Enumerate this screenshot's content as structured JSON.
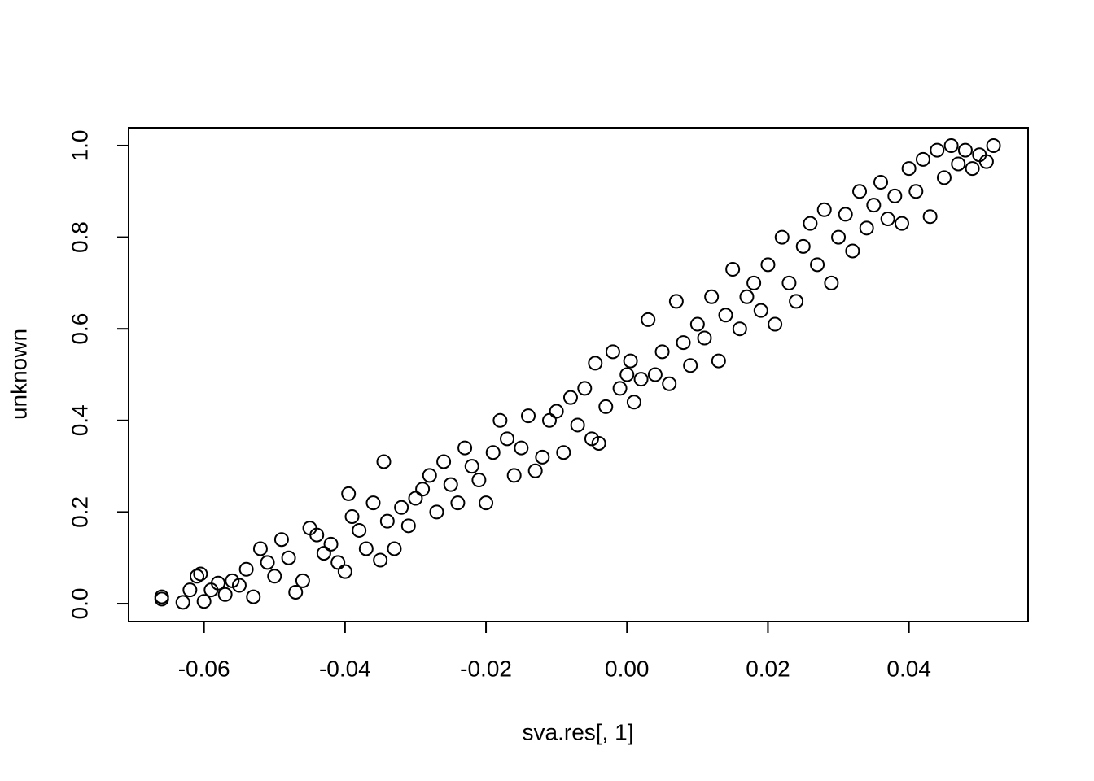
{
  "chart_data": {
    "type": "scatter",
    "x_label": "sva.res[, 1]",
    "y_label": "unknown",
    "xlim": [
      -0.0707,
      0.0569
    ],
    "ylim": [
      -0.039,
      1.039
    ],
    "xticks": [
      -0.06,
      -0.04,
      -0.02,
      {
        "value": 0,
        "label": "0.00"
      },
      0.02,
      0.04
    ],
    "yticks": [
      {
        "value": 0,
        "label": "0.0"
      },
      0.2,
      0.4,
      0.6,
      0.8,
      {
        "value": 1,
        "label": "1.0"
      }
    ],
    "color": "#000000",
    "x": [
      -0.066,
      -0.066,
      -0.063,
      -0.062,
      -0.061,
      -0.0605,
      -0.06,
      -0.059,
      -0.058,
      -0.057,
      -0.056,
      -0.055,
      -0.054,
      -0.053,
      -0.052,
      -0.051,
      -0.05,
      -0.049,
      -0.048,
      -0.047,
      -0.046,
      -0.045,
      -0.044,
      -0.043,
      -0.042,
      -0.041,
      -0.04,
      -0.0395,
      -0.039,
      -0.038,
      -0.037,
      -0.036,
      -0.035,
      -0.0345,
      -0.034,
      -0.033,
      -0.032,
      -0.031,
      -0.03,
      -0.029,
      -0.028,
      -0.027,
      -0.026,
      -0.025,
      -0.024,
      -0.023,
      -0.022,
      -0.021,
      -0.02,
      -0.019,
      -0.018,
      -0.017,
      -0.016,
      -0.015,
      -0.014,
      -0.013,
      -0.012,
      -0.011,
      -0.01,
      -0.009,
      -0.008,
      -0.007,
      -0.006,
      -0.005,
      -0.0045,
      -0.004,
      -0.003,
      -0.002,
      -0.001,
      0,
      0.0005,
      0.001,
      0.002,
      0.003,
      0.004,
      0.005,
      0.006,
      0.007,
      0.008,
      0.009,
      0.01,
      0.011,
      0.012,
      0.013,
      0.014,
      0.015,
      0.016,
      0.017,
      0.018,
      0.019,
      0.02,
      0.021,
      0.022,
      0.023,
      0.024,
      0.025,
      0.026,
      0.027,
      0.028,
      0.029,
      0.03,
      0.031,
      0.032,
      0.033,
      0.034,
      0.035,
      0.036,
      0.037,
      0.038,
      0.039,
      0.04,
      0.041,
      0.042,
      0.043,
      0.044,
      0.045,
      0.046,
      0.047,
      0.048,
      0.049,
      0.05,
      0.051,
      0.052
    ],
    "y": [
      0.01,
      0.015,
      0.003,
      0.03,
      0.06,
      0.065,
      0.005,
      0.03,
      0.045,
      0.02,
      0.05,
      0.04,
      0.075,
      0.015,
      0.12,
      0.09,
      0.06,
      0.14,
      0.1,
      0.025,
      0.05,
      0.165,
      0.15,
      0.11,
      0.13,
      0.09,
      0.07,
      0.24,
      0.19,
      0.16,
      0.12,
      0.22,
      0.095,
      0.31,
      0.18,
      0.12,
      0.21,
      0.17,
      0.23,
      0.25,
      0.28,
      0.2,
      0.31,
      0.26,
      0.22,
      0.34,
      0.3,
      0.27,
      0.22,
      0.33,
      0.4,
      0.36,
      0.28,
      0.34,
      0.41,
      0.29,
      0.32,
      0.4,
      0.42,
      0.33,
      0.45,
      0.39,
      0.47,
      0.36,
      0.525,
      0.35,
      0.43,
      0.55,
      0.47,
      0.5,
      0.53,
      0.44,
      0.49,
      0.62,
      0.5,
      0.55,
      0.48,
      0.66,
      0.57,
      0.52,
      0.61,
      0.58,
      0.67,
      0.53,
      0.63,
      0.73,
      0.6,
      0.67,
      0.7,
      0.64,
      0.74,
      0.61,
      0.8,
      0.7,
      0.66,
      0.78,
      0.83,
      0.74,
      0.86,
      0.7,
      0.8,
      0.85,
      0.77,
      0.9,
      0.82,
      0.87,
      0.92,
      0.84,
      0.89,
      0.83,
      0.95,
      0.9,
      0.97,
      0.845,
      0.99,
      0.93,
      1.0,
      0.96,
      0.99,
      0.95,
      0.98,
      0.965,
      1.0
    ]
  }
}
